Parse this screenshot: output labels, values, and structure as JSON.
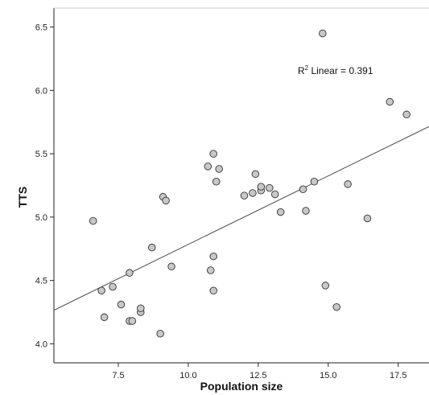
{
  "chart_data": {
    "type": "scatter",
    "xlabel": "Population size",
    "ylabel": "TTS",
    "xlim": [
      5.2,
      18.6
    ],
    "ylim": [
      3.85,
      6.65
    ],
    "x_ticks": [
      7.5,
      10.0,
      12.5,
      15.0,
      17.5
    ],
    "x_tick_labels": [
      "7.5",
      "10.0",
      "12.5",
      "15.0",
      "17.5"
    ],
    "y_ticks": [
      4.0,
      4.5,
      5.0,
      5.5,
      6.0,
      6.5
    ],
    "y_tick_labels": [
      "4.0",
      "4.5",
      "5.0",
      "5.5",
      "6.0",
      "6.5"
    ],
    "grid": false,
    "annotation": {
      "prefix": "R",
      "sup": "2",
      "text": " Linear = 0.391"
    },
    "fit_line": {
      "x": [
        5.2,
        18.6
      ],
      "y": [
        4.265,
        5.715
      ]
    },
    "points": [
      {
        "x": 6.6,
        "y": 4.97
      },
      {
        "x": 6.9,
        "y": 4.42
      },
      {
        "x": 7.0,
        "y": 4.21
      },
      {
        "x": 7.3,
        "y": 4.45
      },
      {
        "x": 7.6,
        "y": 4.31
      },
      {
        "x": 7.9,
        "y": 4.56
      },
      {
        "x": 7.9,
        "y": 4.18
      },
      {
        "x": 8.0,
        "y": 4.18
      },
      {
        "x": 8.3,
        "y": 4.25
      },
      {
        "x": 8.3,
        "y": 4.28
      },
      {
        "x": 8.7,
        "y": 4.76
      },
      {
        "x": 9.0,
        "y": 4.08
      },
      {
        "x": 9.1,
        "y": 5.16
      },
      {
        "x": 9.2,
        "y": 5.13
      },
      {
        "x": 9.4,
        "y": 4.61
      },
      {
        "x": 10.7,
        "y": 5.4
      },
      {
        "x": 10.8,
        "y": 4.58
      },
      {
        "x": 10.9,
        "y": 4.69
      },
      {
        "x": 10.9,
        "y": 4.42
      },
      {
        "x": 10.9,
        "y": 5.5
      },
      {
        "x": 11.0,
        "y": 5.28
      },
      {
        "x": 11.1,
        "y": 5.38
      },
      {
        "x": 12.0,
        "y": 5.17
      },
      {
        "x": 12.3,
        "y": 5.19
      },
      {
        "x": 12.4,
        "y": 5.34
      },
      {
        "x": 12.6,
        "y": 5.21
      },
      {
        "x": 12.6,
        "y": 5.24
      },
      {
        "x": 12.9,
        "y": 5.23
      },
      {
        "x": 13.1,
        "y": 5.18
      },
      {
        "x": 13.3,
        "y": 5.04
      },
      {
        "x": 14.1,
        "y": 5.22
      },
      {
        "x": 14.2,
        "y": 5.05
      },
      {
        "x": 14.5,
        "y": 5.28
      },
      {
        "x": 14.8,
        "y": 6.45
      },
      {
        "x": 14.9,
        "y": 4.46
      },
      {
        "x": 15.3,
        "y": 4.29
      },
      {
        "x": 15.7,
        "y": 5.26
      },
      {
        "x": 16.4,
        "y": 4.99
      },
      {
        "x": 17.2,
        "y": 5.91
      },
      {
        "x": 17.8,
        "y": 5.81
      }
    ]
  }
}
